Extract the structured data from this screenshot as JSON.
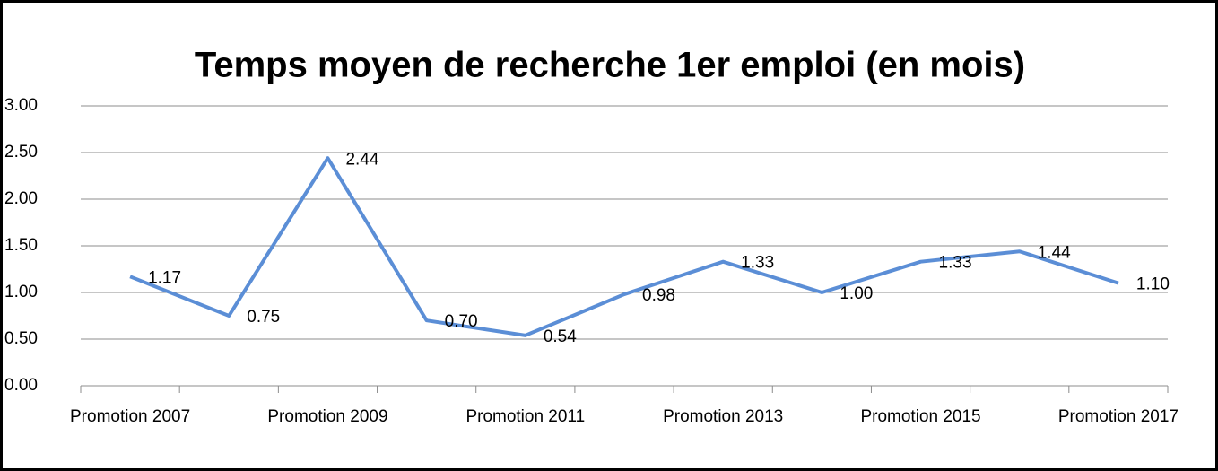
{
  "chart_data": {
    "type": "line",
    "title": "Temps moyen de recherche  1er emploi (en mois)",
    "categories": [
      "Promotion 2007",
      null,
      "Promotion 2009",
      null,
      "Promotion 2011",
      null,
      "Promotion 2013",
      null,
      "Promotion 2015",
      null,
      "Promotion 2017"
    ],
    "values": [
      1.17,
      0.75,
      2.44,
      0.7,
      0.54,
      0.98,
      1.33,
      1.0,
      1.33,
      1.44,
      1.1
    ],
    "value_labels": [
      "1.17",
      "0.75",
      "2.44",
      "0.70",
      "0.54",
      "0.98",
      "1.33",
      "1.00",
      "1.33",
      "1.44",
      "1.10"
    ],
    "color": "#5b8ed6",
    "ylim": [
      0,
      3
    ],
    "yticks": [
      {
        "value": 0,
        "label": "0.00"
      },
      {
        "value": 0.5,
        "label": "0.50"
      },
      {
        "value": 1,
        "label": "1.00"
      },
      {
        "value": 1.5,
        "label": "1.50"
      },
      {
        "value": 2,
        "label": "2.00"
      },
      {
        "value": 2.5,
        "label": "2.50"
      },
      {
        "value": 3,
        "label": "3.00"
      }
    ],
    "grid": true
  }
}
